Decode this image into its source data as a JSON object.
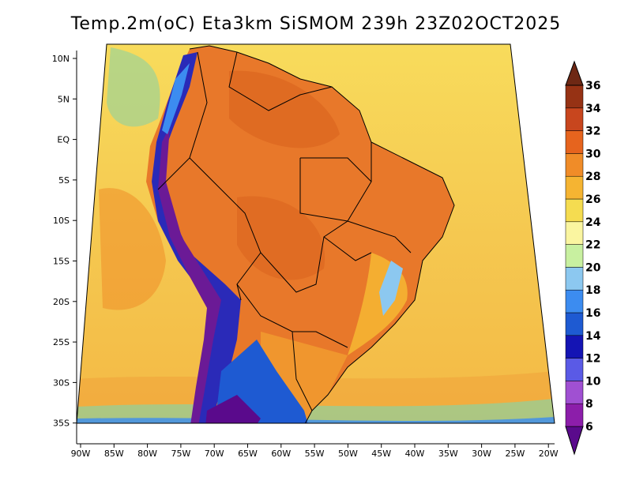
{
  "title": "Temp.2m(oC) Eta3km SiSMOM 239h 23Z02OCT2025",
  "lat_labels": [
    "10N",
    "5N",
    "EQ",
    "5S",
    "10S",
    "15S",
    "20S",
    "25S",
    "30S",
    "35S"
  ],
  "lon_labels": [
    "90W",
    "85W",
    "80W",
    "75W",
    "70W",
    "65W",
    "60W",
    "55W",
    "50W",
    "45W",
    "40W",
    "35W",
    "30W",
    "25W",
    "20W"
  ],
  "colorbar": {
    "labels": [
      "6",
      "8",
      "10",
      "12",
      "14",
      "16",
      "18",
      "20",
      "22",
      "24",
      "26",
      "28",
      "30",
      "32",
      "34",
      "36"
    ],
    "colors": [
      "#5a0a8c",
      "#8c1eaa",
      "#a050d2",
      "#5a5ae6",
      "#1414b4",
      "#1e5ad2",
      "#3c8cf0",
      "#8cc8f0",
      "#c8f0a0",
      "#faf5a0",
      "#f5dc50",
      "#f5b432",
      "#f08c28",
      "#e6641e",
      "#c8461e",
      "#963214",
      "#6e2814"
    ]
  },
  "palette": {
    "ocean": "#f5c850",
    "land_hot": "#e8782a",
    "land_warm": "#f0962e",
    "coast_cool": "#8ed2a0",
    "andes": "#2a2ab8",
    "deep_cold": "#6b1a96",
    "border": "#000000"
  }
}
